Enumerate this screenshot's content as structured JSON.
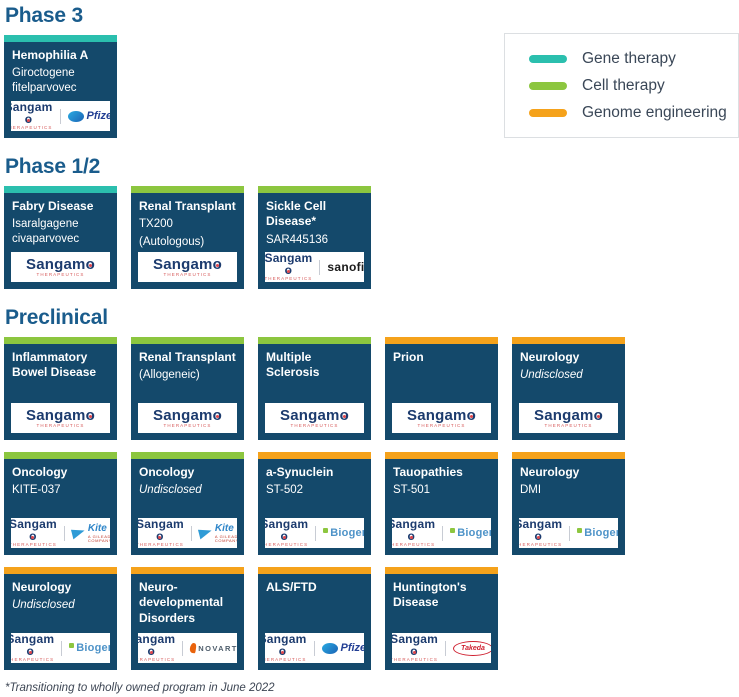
{
  "legend": {
    "items": [
      {
        "key": "gene",
        "label": "Gene therapy",
        "color": "#2bbfae"
      },
      {
        "key": "cell",
        "label": "Cell therapy",
        "color": "#8cc63f"
      },
      {
        "key": "genome",
        "label": "Genome engineering",
        "color": "#f5a21b"
      }
    ]
  },
  "card_colors": {
    "navy_body": "#14496b",
    "heading_blue": "#1a5c8c"
  },
  "partners": {
    "sangamo": {
      "name": "Sangamo",
      "sub": "THERAPEUTICS"
    },
    "pfizer": {
      "name": "Pfizer"
    },
    "sanofi": {
      "name": "sanofi"
    },
    "kite": {
      "name": "Kite",
      "sub": "A GILEAD COMPANY"
    },
    "biogen": {
      "name": "Biogen"
    },
    "novartis": {
      "name": "NOVARTIS"
    },
    "takeda": {
      "name": "Takeda"
    }
  },
  "sections": [
    {
      "title": "Phase 3",
      "rows": [
        [
          {
            "title": "Hemophilia A",
            "subs": [
              {
                "text": "Giroctogene fitelparvovec",
                "italic": false
              }
            ],
            "therapy": "gene",
            "partners": [
              "sangamo",
              "pfizer"
            ]
          }
        ]
      ]
    },
    {
      "title": "Phase 1/2",
      "rows": [
        [
          {
            "title": "Fabry Disease",
            "subs": [
              {
                "text": "Isaralgagene civaparvovec",
                "italic": false
              }
            ],
            "therapy": "gene",
            "partners": [
              "sangamo"
            ]
          },
          {
            "title": "Renal Transplant",
            "subs": [
              {
                "text": "TX200",
                "italic": false
              },
              {
                "text": "(Autologous)",
                "italic": false
              }
            ],
            "therapy": "cell",
            "partners": [
              "sangamo"
            ]
          },
          {
            "title": "Sickle Cell Disease*",
            "subs": [
              {
                "text": "SAR445136",
                "italic": false
              }
            ],
            "therapy": "cell",
            "partners": [
              "sangamo",
              "sanofi"
            ]
          }
        ]
      ]
    },
    {
      "title": "Preclinical",
      "rows": [
        [
          {
            "title": "Inflammatory Bowel Disease",
            "subs": [],
            "therapy": "cell",
            "partners": [
              "sangamo"
            ]
          },
          {
            "title": "Renal Transplant",
            "subs": [
              {
                "text": "(Allogeneic)",
                "italic": false
              }
            ],
            "therapy": "cell",
            "partners": [
              "sangamo"
            ]
          },
          {
            "title": "Multiple Sclerosis",
            "subs": [],
            "therapy": "cell",
            "partners": [
              "sangamo"
            ]
          },
          {
            "title": "Prion",
            "subs": [],
            "therapy": "genome",
            "partners": [
              "sangamo"
            ]
          },
          {
            "title": "Neurology",
            "subs": [
              {
                "text": "Undisclosed",
                "italic": true
              }
            ],
            "therapy": "genome",
            "partners": [
              "sangamo"
            ]
          }
        ],
        [
          {
            "title": "Oncology",
            "subs": [
              {
                "text": "KITE-037",
                "italic": false
              }
            ],
            "therapy": "cell",
            "partners": [
              "sangamo",
              "kite"
            ]
          },
          {
            "title": "Oncology",
            "subs": [
              {
                "text": "Undisclosed",
                "italic": true
              }
            ],
            "therapy": "cell",
            "partners": [
              "sangamo",
              "kite"
            ]
          },
          {
            "title": "a-Synuclein",
            "subs": [
              {
                "text": "ST-502",
                "italic": false
              }
            ],
            "therapy": "genome",
            "partners": [
              "sangamo",
              "biogen"
            ]
          },
          {
            "title": "Tauopathies",
            "subs": [
              {
                "text": "ST-501",
                "italic": false
              }
            ],
            "therapy": "genome",
            "partners": [
              "sangamo",
              "biogen"
            ]
          },
          {
            "title": "Neurology",
            "subs": [
              {
                "text": "DMI",
                "italic": false
              }
            ],
            "therapy": "genome",
            "partners": [
              "sangamo",
              "biogen"
            ]
          }
        ],
        [
          {
            "title": "Neurology",
            "subs": [
              {
                "text": "Undisclosed",
                "italic": true
              }
            ],
            "therapy": "genome",
            "partners": [
              "sangamo",
              "biogen"
            ]
          },
          {
            "title": "Neuro-developmental Disorders",
            "subs": [],
            "therapy": "genome",
            "partners": [
              "sangamo",
              "novartis"
            ]
          },
          {
            "title": "ALS/FTD",
            "subs": [],
            "therapy": "genome",
            "partners": [
              "sangamo",
              "pfizer"
            ]
          },
          {
            "title": "Huntington's Disease",
            "subs": [],
            "therapy": "genome",
            "partners": [
              "sangamo",
              "takeda"
            ]
          }
        ]
      ]
    }
  ],
  "footnote": "*Transitioning to wholly owned program in June 2022"
}
